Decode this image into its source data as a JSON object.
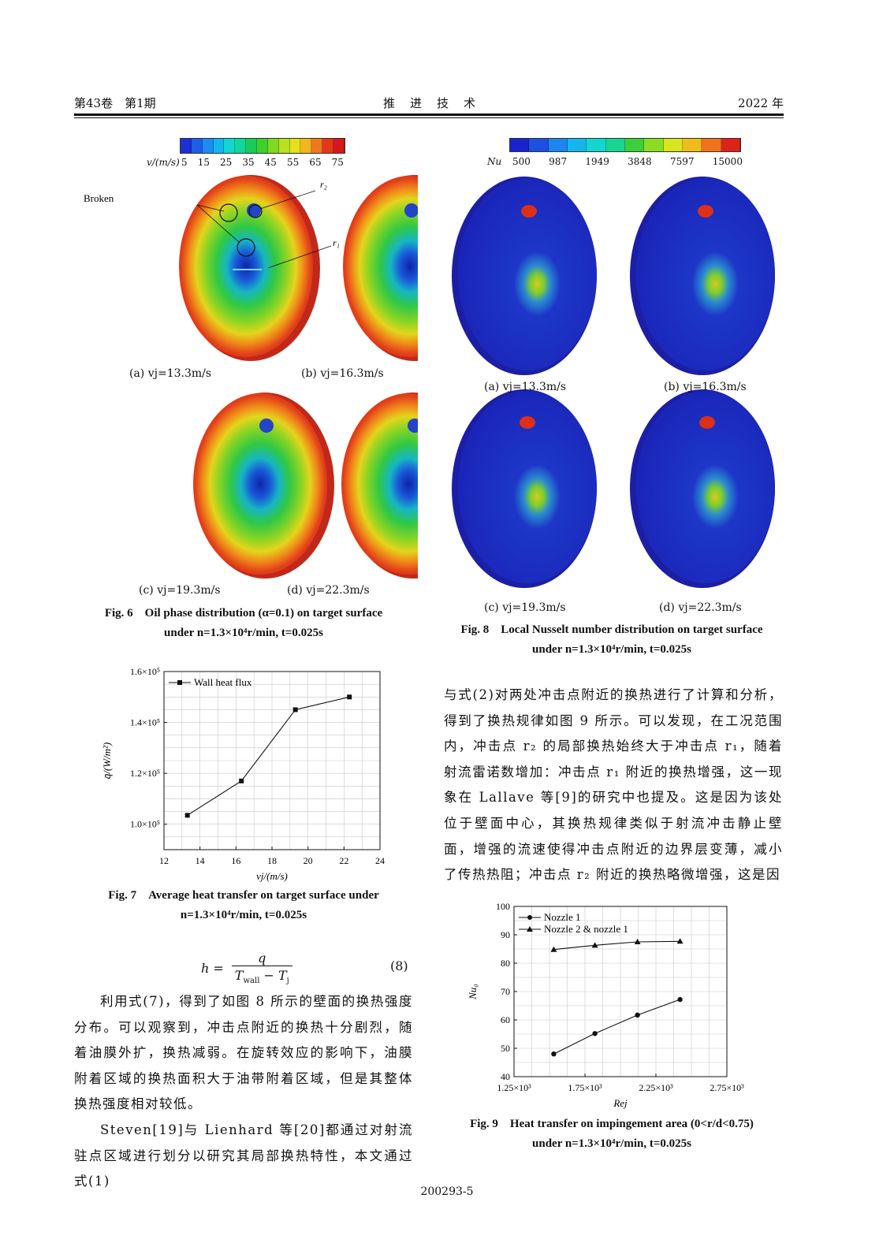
{
  "header": {
    "left": "第43卷　第1期",
    "center": "推　进　技　术",
    "right": "2022 年"
  },
  "fig6": {
    "colorbar": {
      "label": "v/(m/s)",
      "ticks": [
        "5",
        "15",
        "25",
        "35",
        "45",
        "55",
        "65",
        "75"
      ],
      "colors": [
        "#1f2fd6",
        "#1e5ee8",
        "#1c8cf0",
        "#13b7ef",
        "#12d6d2",
        "#12d69a",
        "#18cc5a",
        "#3fcf2a",
        "#7fd822",
        "#b7e21e",
        "#e6e01c",
        "#f3b51c",
        "#f0781c",
        "#e5361a",
        "#d61818"
      ]
    },
    "annotations": {
      "broken": "Broken",
      "r2": "r₂",
      "r1": "r₁"
    },
    "panels": [
      "(a) vj=13.3m/s",
      "(b) vj=16.3m/s",
      "(c) vj=19.3m/s",
      "(d) vj=22.3m/s"
    ],
    "caption_line1": "Fig. 6　Oil phase distribution (α=0.1) on target surface",
    "caption_line2": "under n=1.3×10⁴r/min, t=0.025s"
  },
  "fig8": {
    "colorbar": {
      "label": "Nu",
      "ticks": [
        "500",
        "987",
        "1949",
        "3848",
        "7597",
        "15000"
      ],
      "colors": [
        "#1a22cc",
        "#1d4fe0",
        "#1a86ee",
        "#14b6ee",
        "#12d6cf",
        "#17d592",
        "#3ccf3a",
        "#8bdc22",
        "#d7e51c",
        "#f1bb1c",
        "#ef731b",
        "#dc2318"
      ]
    },
    "panels": [
      "(a) vj=13.3m/s",
      "(b) vj=16.3m/s",
      "(c) vj=19.3m/s",
      "(d) vj=22.3m/s"
    ],
    "caption_line1": "Fig. 8　Local Nusselt number distribution on target surface",
    "caption_line2": "under n=1.3×10⁴r/min, t=0.025s"
  },
  "fig7": {
    "caption_line1": "Fig. 7　Average heat transfer on target surface under",
    "caption_line2": "n=1.3×10⁴r/min, t=0.025s",
    "chart_data": {
      "type": "line",
      "xlabel": "vj/(m/s)",
      "ylabel": "q̄/(W/m²)",
      "xlim": [
        12,
        24
      ],
      "ylim": [
        90000,
        160000
      ],
      "x_ticks": [
        "12",
        "14",
        "16",
        "18",
        "20",
        "22",
        "24"
      ],
      "y_ticks": [
        "1.0×10⁵",
        "1.2×10⁵",
        "1.4×10⁵",
        "1.6×10⁵"
      ],
      "grid": true,
      "legend_position": "top-left",
      "series": [
        {
          "name": "Wall heat flux",
          "marker": "square",
          "x": [
            13.3,
            16.3,
            19.3,
            22.3
          ],
          "y": [
            103500,
            117000,
            145000,
            150000
          ]
        }
      ]
    }
  },
  "fig9": {
    "caption_line1": "Fig. 9　Heat transfer on impingement area (0<r/d<0.75)",
    "caption_line2": "under n=1.3×10⁴r/min, t=0.025s",
    "chart_data": {
      "type": "line",
      "xlabel": "Rej",
      "ylabel": "Nu₀",
      "xlim": [
        1250,
        2750
      ],
      "ylim": [
        40,
        100
      ],
      "x_ticks": [
        "1.25×10³",
        "1.75×10³",
        "2.25×10³",
        "2.75×10³"
      ],
      "y_ticks": [
        "40",
        "50",
        "60",
        "70",
        "80",
        "90",
        "100"
      ],
      "grid": true,
      "legend_position": "top-left",
      "series": [
        {
          "name": "Nozzle 1",
          "marker": "circle",
          "x": [
            1530,
            1820,
            2120,
            2420
          ],
          "y": [
            48,
            55.2,
            61.7,
            67.2
          ]
        },
        {
          "name": "Nozzle 2 & nozzle 1",
          "marker": "triangle",
          "x": [
            1530,
            1820,
            2120,
            2420
          ],
          "y": [
            84.8,
            86.3,
            87.5,
            87.7
          ]
        }
      ]
    }
  },
  "equation": {
    "lhs": "h =",
    "numerator": "q",
    "denominator": "T",
    "wall": "wall",
    "minus": " − T",
    "j": "j",
    "number": "(8)"
  },
  "text_left": [
    "利用式(7)，得到了如图 8 所示的壁面的换热强度分布。可以观察到，冲击点附近的换热十分剧烈，随着油膜外扩，换热减弱。在旋转效应的影响下，油膜附着区域的换热面积大于油带附着区域，但是其整体换热强度相对较低。",
    "Steven[19]与 Lienhard 等[20]都通过对射流驻点区域进行划分以研究其局部换热特性，本文通过式(1)"
  ],
  "text_right": "与式(2)对两处冲击点附近的换热进行了计算和分析，得到了换热规律如图 9 所示。可以发现，在工况范围内，冲击点 r₂ 的局部换热始终大于冲击点 r₁，随着射流雷诺数增加：冲击点 r₁ 附近的换热增强，这一现象在 Lallave 等[9]的研究中也提及。这是因为该处位于壁面中心，其换热规律类似于射流冲击静止壁面，增强的流速使得冲击点附近的边界层变薄，减小了传热热阻；冲击点 r₂ 附近的换热略微增强，这是因",
  "footer": "200293-5"
}
